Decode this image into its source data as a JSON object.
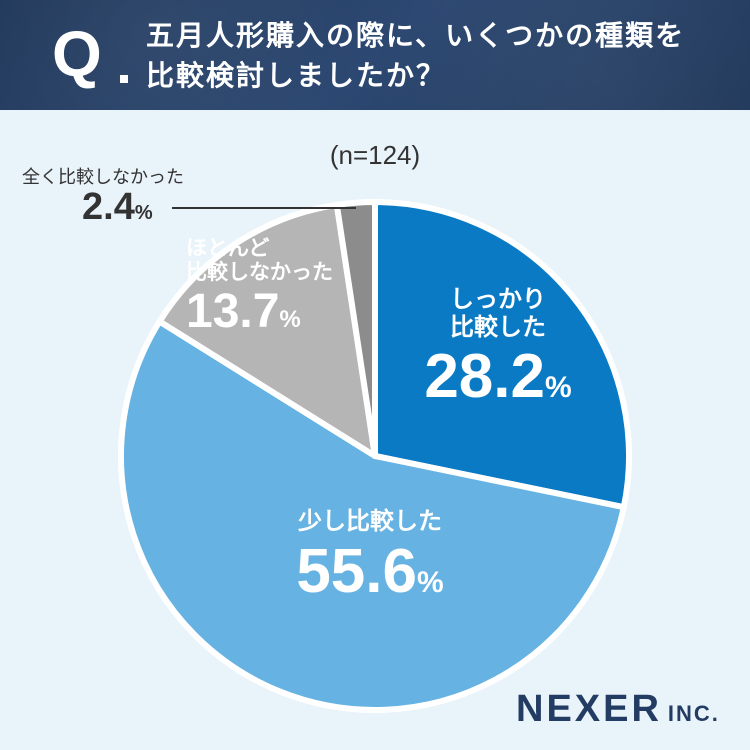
{
  "question": {
    "mark": "Q",
    "line1": "五月人形購入の際に、いくつかの種類を",
    "line2": "比較検討しましたか？"
  },
  "chart_data": {
    "type": "pie",
    "sample": "(n=124)",
    "slices": [
      {
        "label_line1": "しっかり",
        "label_line2": "比較した",
        "value": "28.2",
        "pct": 28.2,
        "unit": "%",
        "color": "#0a7ac4"
      },
      {
        "label_line1": "少し比較した",
        "label_line2": "",
        "value": "55.6",
        "pct": 55.6,
        "unit": "%",
        "color": "#66b3e3"
      },
      {
        "label_line1": "ほとんど",
        "label_line2": "比較しなかった",
        "value": "13.7",
        "pct": 13.7,
        "unit": "%",
        "color": "#b5b5b5"
      },
      {
        "label_line1": "全く比較しなかった",
        "label_line2": "",
        "value": "2.4",
        "pct": 2.4,
        "unit": "%",
        "color": "#8c8c8c"
      }
    ]
  },
  "logo": {
    "main": "NEXER",
    "sub": "INC."
  }
}
